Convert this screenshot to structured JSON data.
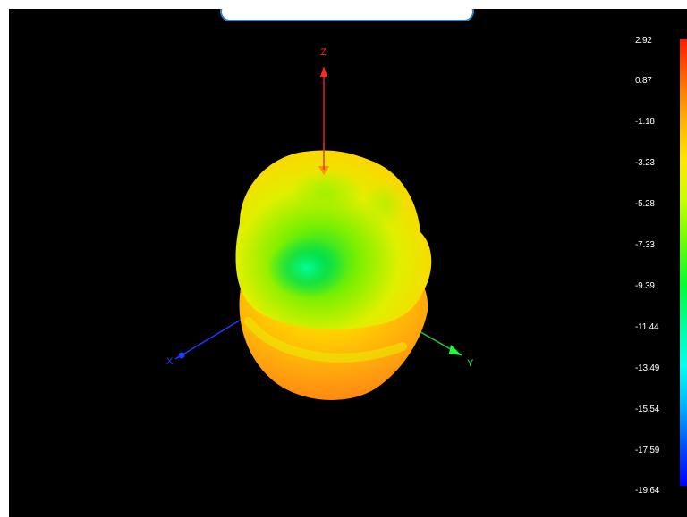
{
  "scene": {
    "axes": {
      "z": {
        "label": "Z",
        "color": "#ff2a1a"
      },
      "x": {
        "label": "X",
        "color": "#1a3cff"
      },
      "y": {
        "label": "Y",
        "color": "#1aff3a"
      }
    },
    "pattern_colors": {
      "outer": "#ff8a1a",
      "mid": "#ffe600",
      "inner": "#00e64d"
    }
  },
  "legend": {
    "ticks": [
      "2.92",
      "0.87",
      "-1.18",
      "-3.23",
      "-5.28",
      "-7.33",
      "-9.39",
      "-11.44",
      "-13.49",
      "-15.54",
      "-17.59",
      "-19.64"
    ]
  }
}
